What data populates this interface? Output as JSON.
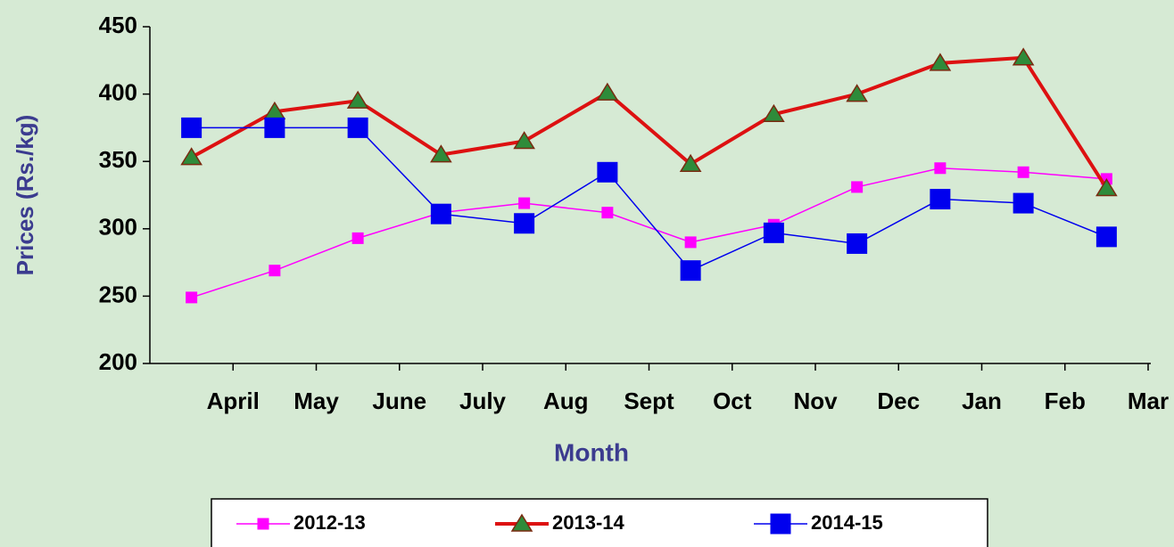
{
  "chart_data": {
    "type": "line",
    "x_label": "Month",
    "y_label": "Prices (Rs./kg)",
    "categories": [
      "April",
      "May",
      "June",
      "July",
      "Aug",
      "Sept",
      "Oct",
      "Nov",
      "Dec",
      "Jan",
      "Feb",
      "Mar"
    ],
    "series": [
      {
        "name": "2012-13",
        "color": "#ff00ff",
        "marker": "square-small",
        "values": [
          249,
          269,
          293,
          312,
          319,
          312,
          290,
          303,
          331,
          345,
          342,
          337
        ]
      },
      {
        "name": "2013-14",
        "color": "#dd1111",
        "marker": "triangle",
        "values": [
          353,
          387,
          395,
          355,
          365,
          401,
          348,
          385,
          400,
          423,
          427,
          330
        ]
      },
      {
        "name": "2014-15",
        "color": "#0000ee",
        "marker": "square",
        "values": [
          375,
          375,
          375,
          311,
          304,
          342,
          269,
          297,
          289,
          322,
          319,
          294
        ]
      }
    ],
    "ylim": [
      200,
      450
    ],
    "yticks": [
      200,
      250,
      300,
      350,
      400,
      450
    ],
    "legend": "bottom"
  }
}
